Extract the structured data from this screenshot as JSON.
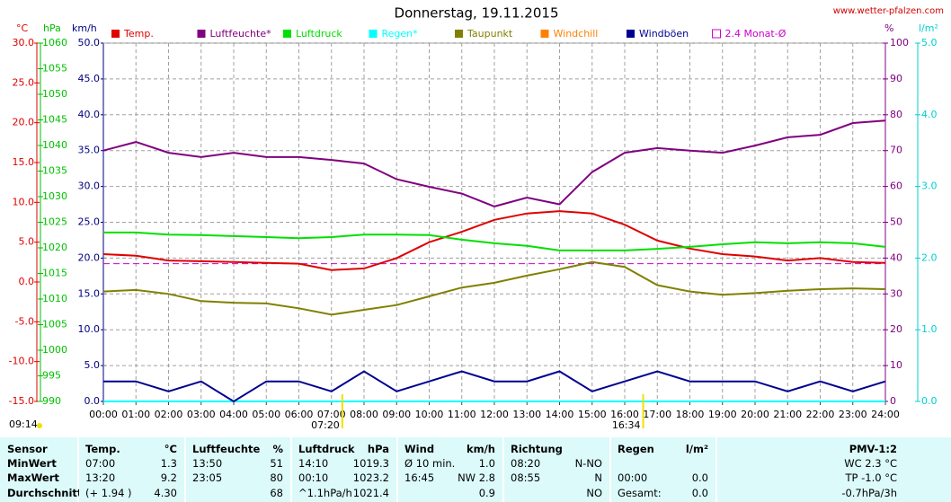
{
  "chart_data": {
    "type": "line",
    "title": "Donnerstag, 19.11.2015",
    "source": "www.wetter-pfalzen.com",
    "update_time": "09:14",
    "x": [
      0,
      1,
      2,
      3,
      4,
      5,
      6,
      7,
      8,
      9,
      10,
      11,
      12,
      13,
      14,
      15,
      16,
      17,
      18,
      19,
      20,
      21,
      22,
      23,
      24
    ],
    "xlim": [
      0,
      24
    ],
    "xticks": [
      {
        "value": 0,
        "label": "00:00"
      },
      {
        "value": 1,
        "label": "01:00"
      },
      {
        "value": 2,
        "label": "02:00"
      },
      {
        "value": 3,
        "label": "03:00"
      },
      {
        "value": 4,
        "label": "04:00"
      },
      {
        "value": 5,
        "label": "05:00"
      },
      {
        "value": 6,
        "label": "06:00"
      },
      {
        "value": 7,
        "label": "07:00"
      },
      {
        "value": 8,
        "label": "08:00"
      },
      {
        "value": 9,
        "label": "09:00"
      },
      {
        "value": 10,
        "label": "10:00"
      },
      {
        "value": 11,
        "label": "11:00"
      },
      {
        "value": 12,
        "label": "12:00"
      },
      {
        "value": 13,
        "label": "13:00"
      },
      {
        "value": 14,
        "label": "14:00"
      },
      {
        "value": 15,
        "label": "15:00"
      },
      {
        "value": 16,
        "label": "16:00"
      },
      {
        "value": 17,
        "label": "17:00"
      },
      {
        "value": 18,
        "label": "18:00"
      },
      {
        "value": 19,
        "label": "19:00"
      },
      {
        "value": 20,
        "label": "20:00"
      },
      {
        "value": 21,
        "label": "21:00"
      },
      {
        "value": 22,
        "label": "22:00"
      },
      {
        "value": 23,
        "label": "23:00"
      },
      {
        "value": 24,
        "label": "24:00"
      }
    ],
    "grid": true,
    "axes": [
      {
        "label": "°C",
        "color": "#e00000",
        "lim": [
          -15,
          30
        ],
        "ticks": [
          {
            "value": 30,
            "label": "30.0"
          },
          {
            "value": 25,
            "label": "25.0"
          },
          {
            "value": 20,
            "label": "20.0"
          },
          {
            "value": 15,
            "label": "15.0"
          },
          {
            "value": 10,
            "label": "10.0"
          },
          {
            "value": 5,
            "label": "5.0"
          },
          {
            "value": 0,
            "label": "0.0"
          },
          {
            "value": -5,
            "label": "-5.0"
          },
          {
            "value": -10,
            "label": "-10.0"
          },
          {
            "value": -15,
            "label": "-15.0"
          }
        ]
      },
      {
        "label": "hPa",
        "color": "#00c000",
        "lim": [
          990,
          1060
        ],
        "ticks": [
          1060,
          1055,
          1050,
          1045,
          1040,
          1035,
          1030,
          1025,
          1020,
          1015,
          1010,
          1005,
          1000,
          995,
          990
        ]
      },
      {
        "label": "km/h",
        "color": "#000080",
        "lim": [
          0,
          50
        ],
        "ticks": [
          {
            "value": 50,
            "label": "50.0"
          },
          {
            "value": 45,
            "label": "45.0"
          },
          {
            "value": 40,
            "label": "40.0"
          },
          {
            "value": 35,
            "label": "35.0"
          },
          {
            "value": 30,
            "label": "30.0"
          },
          {
            "value": 25,
            "label": "25.0"
          },
          {
            "value": 20,
            "label": "20.0"
          },
          {
            "value": 15,
            "label": "15.0"
          },
          {
            "value": 10,
            "label": "10.0"
          },
          {
            "value": 5,
            "label": "5.0"
          },
          {
            "value": 0,
            "label": "0.0"
          }
        ]
      },
      {
        "label": "%",
        "color": "#800080",
        "lim": [
          0,
          100
        ],
        "ticks": [
          100,
          90,
          80,
          70,
          60,
          50,
          40,
          30,
          20,
          10,
          0
        ]
      },
      {
        "label": "l/m²",
        "color": "#00d0d0",
        "lim": [
          0,
          5
        ],
        "ticks": [
          {
            "value": 5,
            "label": "5.0"
          },
          {
            "value": 4,
            "label": "4.0"
          },
          {
            "value": 3,
            "label": "3.0"
          },
          {
            "value": 2,
            "label": "2.0"
          },
          {
            "value": 1,
            "label": "1.0"
          },
          {
            "value": 0,
            "label": "0.0"
          }
        ]
      }
    ],
    "series": [
      {
        "name": "Temp.",
        "color": "#e00000",
        "axis": 0,
        "values": [
          3.5,
          3.3,
          2.7,
          2.6,
          2.5,
          2.4,
          2.3,
          1.5,
          1.7,
          3.0,
          5.0,
          6.3,
          7.8,
          8.6,
          8.9,
          8.6,
          7.2,
          5.2,
          4.2,
          3.5,
          3.2,
          2.7,
          3.0,
          2.5,
          2.4
        ]
      },
      {
        "name": "Luftfeuchte*",
        "color": "#800080",
        "axis": 3,
        "values": [
          70,
          72.4,
          69.4,
          68.2,
          69.4,
          68.2,
          68.2,
          67.4,
          66.4,
          62,
          59.9,
          58,
          54.4,
          56.9,
          55,
          64,
          69.4,
          70.7,
          70,
          69.4,
          71.4,
          73.7,
          74.4,
          77.7,
          78.4
        ]
      },
      {
        "name": "Luftdruck",
        "color": "#00e000",
        "axis": 1,
        "values": [
          1023.0,
          1023.0,
          1022.6,
          1022.5,
          1022.3,
          1022.1,
          1021.9,
          1022.1,
          1022.6,
          1022.6,
          1022.5,
          1021.6,
          1020.9,
          1020.4,
          1019.5,
          1019.5,
          1019.5,
          1019.8,
          1020.2,
          1020.7,
          1021.1,
          1020.9,
          1021.1,
          1020.9,
          1020.2
        ]
      },
      {
        "name": "Regen*",
        "color": "#00ffff",
        "axis": 4,
        "values": [
          0,
          0,
          0,
          0,
          0,
          0,
          0,
          0,
          0,
          0,
          0,
          0,
          0,
          0,
          0,
          0,
          0,
          0,
          0,
          0,
          0,
          0,
          0,
          0,
          0
        ]
      },
      {
        "name": "Taupunkt",
        "color": "#808000",
        "axis": 0,
        "values": [
          -1.2,
          -1.0,
          -1.5,
          -2.4,
          -2.6,
          -2.7,
          -3.3,
          -4.1,
          -3.5,
          -2.9,
          -1.8,
          -0.7,
          -0.1,
          0.8,
          1.6,
          2.5,
          1.9,
          -0.4,
          -1.2,
          -1.6,
          -1.4,
          -1.1,
          -0.9,
          -0.8,
          -0.9
        ]
      },
      {
        "name": "Windchill",
        "color": "#ff8000",
        "axis": 0,
        "values": [
          null,
          null,
          null,
          null,
          null,
          null,
          null,
          null,
          null,
          null,
          null,
          null,
          null,
          null,
          null,
          null,
          null,
          null,
          null,
          null,
          null,
          null,
          null,
          null,
          null
        ]
      },
      {
        "name": "Windböen",
        "color": "#000090",
        "axis": 2,
        "values": [
          2.8,
          2.8,
          1.4,
          2.8,
          0,
          2.8,
          2.8,
          1.4,
          4.2,
          1.4,
          2.8,
          4.2,
          2.8,
          2.8,
          4.2,
          1.4,
          2.8,
          4.2,
          2.8,
          2.8,
          2.8,
          1.4,
          2.8,
          1.4,
          2.8
        ]
      }
    ],
    "reference": {
      "name": "2.4 Monat-Ø",
      "color": "#cc00cc",
      "axis": 0,
      "value": 2.3
    },
    "sun": [
      {
        "label": "07:20",
        "x": 7.333
      },
      {
        "label": "16:34",
        "x": 16.567
      }
    ]
  },
  "table": {
    "sensor": {
      "header": "Sensor",
      "rows": [
        "MinWert",
        "MaxWert",
        "Durchschnitt"
      ]
    },
    "columns": [
      {
        "header": [
          "Temp.",
          "°C"
        ],
        "cells": [
          [
            "07:00",
            "1.3"
          ],
          [
            "13:20",
            "9.2"
          ],
          [
            "(+ 1.94 )",
            "4.30"
          ]
        ]
      },
      {
        "header": [
          "Luftfeuchte",
          "%"
        ],
        "cells": [
          [
            "13:50",
            "51"
          ],
          [
            "23:05",
            "80"
          ],
          [
            null,
            "68"
          ]
        ]
      },
      {
        "header": [
          "Luftdruck",
          "hPa"
        ],
        "cells": [
          [
            "14:10",
            "1019.3"
          ],
          [
            "00:10",
            "1023.2"
          ],
          [
            "^1.1hPa/h",
            "1021.4"
          ]
        ]
      },
      {
        "header": [
          "Wind",
          "km/h"
        ],
        "cells": [
          [
            "Ø 10 min.",
            "1.0"
          ],
          [
            "16:45",
            "NW 2.8"
          ],
          [
            null,
            "0.9"
          ]
        ]
      },
      {
        "header": [
          "Richtung",
          null
        ],
        "cells": [
          [
            "08:20",
            "N-NO"
          ],
          [
            "08:55",
            "N"
          ],
          [
            null,
            "NO"
          ]
        ]
      },
      {
        "header": [
          "Regen",
          "l/m²"
        ],
        "cells": [
          null,
          [
            "00:00",
            "0.0"
          ],
          [
            "Gesamt:",
            "0.0"
          ]
        ]
      }
    ],
    "pmv": {
      "header": "PMV-1:2",
      "cells": [
        "WC 2.3 °C",
        "TP -1.0 °C",
        "-0.7hPa/3h"
      ]
    }
  }
}
